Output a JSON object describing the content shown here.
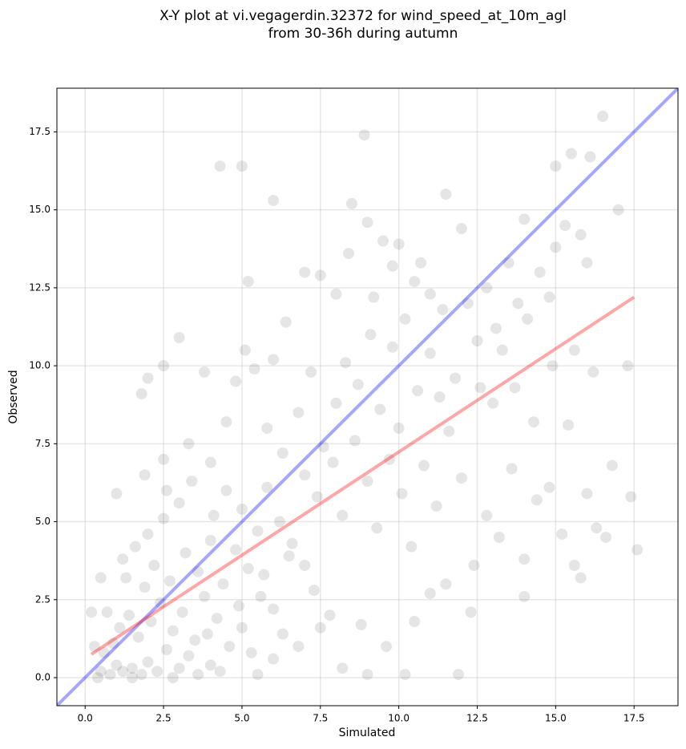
{
  "chart_data": {
    "type": "scatter",
    "title": [
      "X-Y plot at vi.vegagerdin.32372 for wind_speed_at_10m_agl",
      "from 30-36h during autumn"
    ],
    "xlabel": "Simulated",
    "ylabel": "Observed",
    "color": "#000000",
    "alpha": 0.1,
    "grid": true,
    "xlim": [
      -0.9,
      18.9
    ],
    "ylim": [
      -0.9,
      18.9
    ],
    "xticks": [
      {
        "value": 0,
        "label": "0.0"
      },
      2.5,
      {
        "value": 5,
        "label": "5.0"
      },
      7.5,
      {
        "value": 10,
        "label": "10.0"
      },
      12.5,
      {
        "value": 15,
        "label": "15.0"
      },
      17.5
    ],
    "yticks": [
      {
        "value": 0,
        "label": "0.0"
      },
      2.5,
      {
        "value": 5,
        "label": "5.0"
      },
      7.5,
      {
        "value": 10,
        "label": "10.0"
      },
      12.5,
      {
        "value": 15,
        "label": "15.0"
      },
      17.5
    ],
    "x": [
      0.5,
      0.8,
      1.0,
      1.2,
      0.6,
      0.9,
      1.5,
      1.8,
      2.0,
      2.3,
      2.6,
      3.0,
      3.3,
      3.6,
      4.0,
      4.3,
      1.1,
      1.4,
      1.7,
      2.1,
      2.4,
      2.8,
      3.1,
      3.5,
      3.8,
      4.2,
      4.6,
      5.0,
      5.3,
      0.3,
      0.7,
      1.3,
      1.9,
      2.2,
      2.7,
      3.2,
      3.6,
      4.0,
      4.4,
      4.8,
      5.2,
      5.6,
      6.0,
      6.3,
      2.0,
      2.5,
      3.0,
      3.4,
      4.1,
      4.5,
      5.0,
      5.5,
      5.8,
      6.2,
      6.6,
      7.0,
      7.3,
      7.8,
      1.0,
      1.6,
      2.0,
      2.5,
      1.8,
      3.0,
      3.8,
      4.5,
      4.8,
      5.1,
      5.4,
      6.0,
      6.4,
      6.0,
      4.3,
      5.0,
      5.2,
      7.0,
      7.5,
      8.0,
      8.4,
      8.9,
      9.0,
      9.5,
      9.8,
      10.0,
      10.5,
      11.0,
      11.5,
      8.5,
      5.8,
      6.3,
      6.8,
      7.2,
      7.6,
      8.0,
      8.3,
      8.7,
      9.1,
      9.4,
      9.8,
      10.2,
      10.6,
      11.0,
      11.4,
      11.8,
      12.2,
      12.5,
      12.8,
      13.1,
      13.5,
      13.8,
      14.1,
      14.5,
      14.8,
      15.0,
      15.3,
      15.5,
      15.8,
      16.1,
      15.0,
      16.5,
      14.0,
      16.0,
      17.0,
      17.3,
      16.2,
      15.6,
      14.9,
      7.0,
      7.4,
      7.9,
      8.2,
      8.6,
      9.0,
      9.3,
      9.7,
      10.1,
      10.4,
      10.8,
      11.2,
      11.6,
      12.0,
      12.4,
      12.8,
      13.2,
      13.6,
      14.0,
      14.4,
      14.8,
      15.2,
      15.6,
      15.8,
      16.3,
      16.6,
      16.8,
      17.4,
      17.6,
      14.0,
      12.3,
      11.9,
      10.2,
      9.0,
      8.2,
      8.8,
      9.6,
      10.5,
      11.0,
      11.5,
      7.5,
      6.8,
      6.0,
      5.5,
      12.0,
      13.0,
      13.7,
      14.3,
      15.4,
      16.0,
      10.0,
      11.3,
      12.6,
      13.3,
      9.2,
      10.7,
      0.4,
      1.5,
      2.8,
      3.9,
      4.9,
      5.7,
      6.5,
      0.2,
      0.5,
      1.2,
      2.5,
      3.3,
      4.0,
      1.9,
      2.6
    ],
    "y": [
      0.2,
      0.1,
      0.4,
      0.2,
      0.8,
      1.1,
      0.3,
      0.1,
      0.5,
      0.2,
      0.9,
      0.3,
      0.7,
      0.1,
      0.4,
      0.2,
      1.6,
      2.0,
      1.3,
      1.8,
      2.4,
      1.5,
      2.1,
      1.2,
      2.6,
      1.9,
      1.0,
      1.6,
      0.8,
      1.0,
      2.1,
      3.2,
      2.9,
      3.6,
      3.1,
      4.0,
      3.4,
      4.4,
      3.0,
      4.1,
      3.5,
      2.6,
      2.2,
      1.4,
      4.6,
      5.1,
      5.6,
      6.3,
      5.2,
      6.0,
      5.4,
      4.7,
      6.1,
      5.0,
      4.3,
      3.6,
      2.8,
      2.0,
      5.9,
      4.2,
      9.6,
      10.0,
      9.1,
      10.9,
      9.8,
      8.2,
      9.5,
      10.5,
      9.9,
      10.2,
      11.4,
      15.3,
      16.4,
      16.4,
      12.7,
      13.0,
      12.9,
      12.3,
      13.6,
      17.4,
      14.6,
      14.0,
      13.2,
      13.9,
      12.7,
      12.3,
      15.5,
      15.2,
      8.0,
      7.2,
      8.5,
      9.8,
      7.4,
      8.8,
      10.1,
      9.4,
      11.0,
      8.6,
      10.6,
      11.5,
      9.2,
      10.4,
      11.8,
      9.6,
      12.0,
      10.8,
      12.5,
      11.2,
      13.3,
      12.0,
      11.5,
      13.0,
      12.2,
      13.8,
      14.5,
      16.8,
      14.2,
      16.7,
      16.4,
      18.0,
      14.7,
      13.3,
      15.0,
      10.0,
      9.8,
      10.5,
      10.0,
      6.5,
      5.8,
      6.9,
      5.2,
      7.6,
      6.3,
      4.8,
      7.0,
      5.9,
      4.2,
      6.8,
      5.5,
      7.9,
      6.4,
      3.6,
      5.2,
      4.5,
      6.7,
      3.8,
      5.7,
      6.1,
      4.6,
      3.6,
      3.2,
      4.8,
      4.5,
      6.8,
      5.8,
      4.1,
      2.6,
      2.1,
      0.1,
      0.1,
      0.1,
      0.3,
      1.7,
      1.0,
      1.8,
      2.7,
      3.0,
      1.6,
      1.0,
      0.6,
      0.1,
      14.4,
      8.8,
      9.3,
      8.2,
      8.1,
      5.9,
      8.0,
      9.0,
      9.3,
      10.5,
      12.2,
      13.3,
      0.0,
      0.0,
      0.0,
      1.4,
      2.3,
      3.3,
      3.9,
      2.1,
      3.2,
      3.8,
      7.0,
      7.5,
      6.9,
      6.5,
      6.0
    ],
    "lines": [
      {
        "x": [
          -0.9,
          18.9
        ],
        "y": [
          -0.9,
          18.9
        ],
        "color": "#0000ff"
      },
      {
        "x": [
          0.2,
          17.5
        ],
        "y": [
          0.75,
          12.2
        ],
        "color": "#ff0000"
      }
    ],
    "line_alpha": 0.35
  }
}
